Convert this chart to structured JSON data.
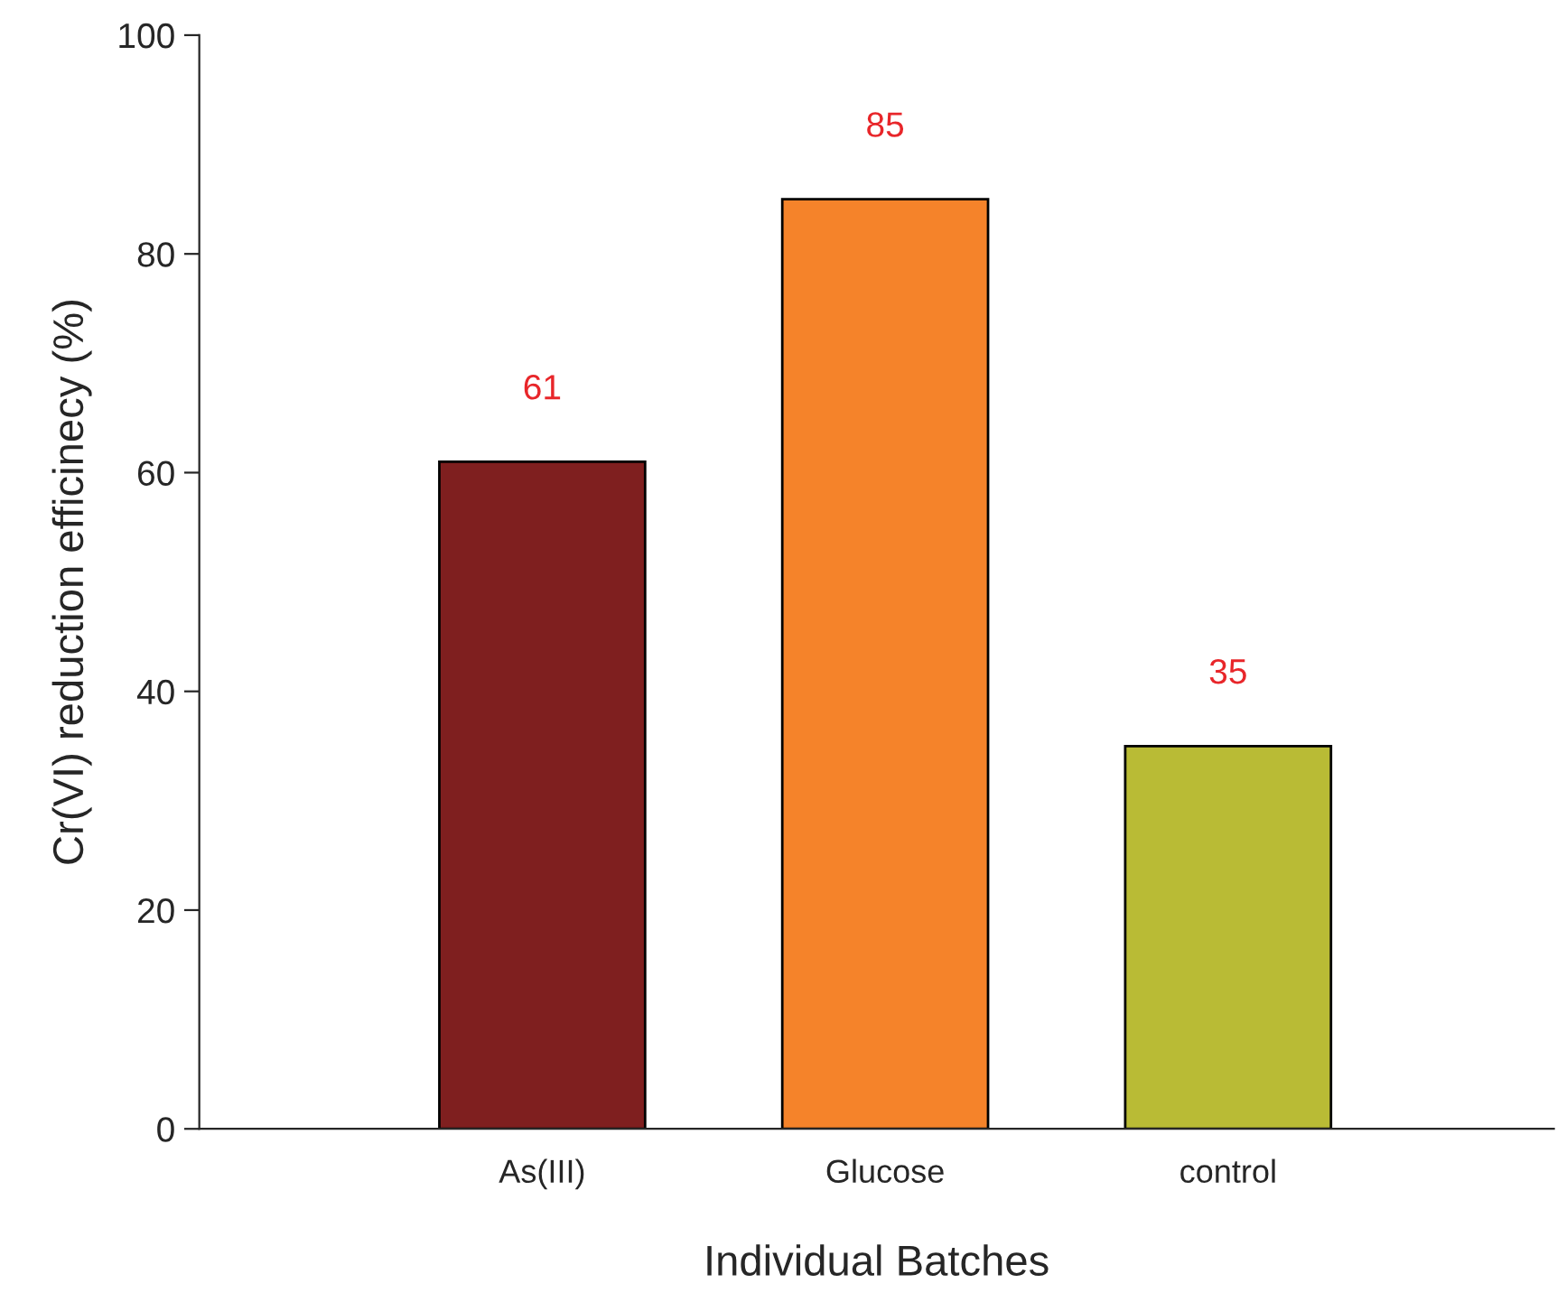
{
  "chart_data": {
    "type": "bar",
    "xlabel": "Individual Batches",
    "ylabel": "Cr(VI) reduction efficinecy (%)",
    "categories": [
      "As(III)",
      "Glucose",
      "control"
    ],
    "values": [
      61,
      85,
      35
    ],
    "colors": [
      "#7f1f1f",
      "#f5832a",
      "#b9bb35"
    ],
    "ylim": [
      0,
      100
    ],
    "yticks": [
      0,
      20,
      40,
      60,
      80,
      100
    ],
    "grid": false,
    "data_labels": true
  }
}
